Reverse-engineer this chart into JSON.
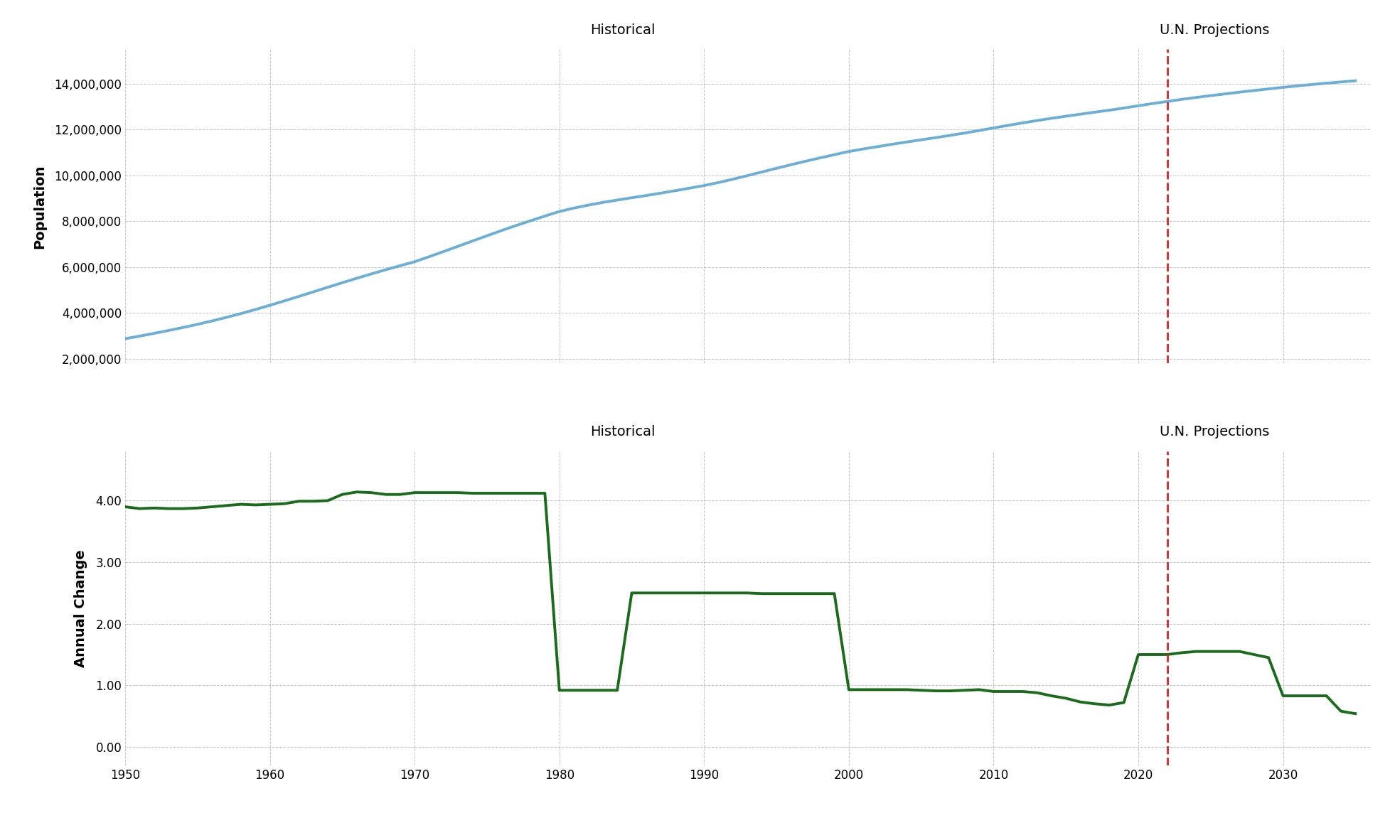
{
  "population_years": [
    1950,
    1951,
    1952,
    1953,
    1954,
    1955,
    1956,
    1957,
    1958,
    1959,
    1960,
    1961,
    1962,
    1963,
    1964,
    1965,
    1966,
    1967,
    1968,
    1969,
    1970,
    1971,
    1972,
    1973,
    1974,
    1975,
    1976,
    1977,
    1978,
    1979,
    1980,
    1981,
    1982,
    1983,
    1984,
    1985,
    1986,
    1987,
    1988,
    1989,
    1990,
    1991,
    1992,
    1993,
    1994,
    1995,
    1996,
    1997,
    1998,
    1999,
    2000,
    2001,
    2002,
    2003,
    2004,
    2005,
    2006,
    2007,
    2008,
    2009,
    2010,
    2011,
    2012,
    2013,
    2014,
    2015,
    2016,
    2017,
    2018,
    2019,
    2020,
    2021,
    2022,
    2023,
    2024,
    2025,
    2026,
    2027,
    2028,
    2029,
    2030,
    2031,
    2032,
    2033,
    2034,
    2035
  ],
  "population_values": [
    2877000,
    2992000,
    3112000,
    3237000,
    3368000,
    3506000,
    3653000,
    3809000,
    3975000,
    4152000,
    4336000,
    4527000,
    4723000,
    4922000,
    5122000,
    5320000,
    5514000,
    5703000,
    5886000,
    6063000,
    6236000,
    6454000,
    6680000,
    6910000,
    7141000,
    7370000,
    7595000,
    7814000,
    8023000,
    8228000,
    8426000,
    8577000,
    8706000,
    8823000,
    8928000,
    9027000,
    9125000,
    9228000,
    9336000,
    9447000,
    9559000,
    9692000,
    9839000,
    9994000,
    10153000,
    10312000,
    10467000,
    10618000,
    10764000,
    10906000,
    11045000,
    11157000,
    11258000,
    11362000,
    11459000,
    11554000,
    11649000,
    11748000,
    11851000,
    11960000,
    12074000,
    12184000,
    12292000,
    12395000,
    12492000,
    12585000,
    12673000,
    12761000,
    12847000,
    12941000,
    13040000,
    13137000,
    13227000,
    13321000,
    13403000,
    13482000,
    13559000,
    13634000,
    13706000,
    13776000,
    13843000,
    13908000,
    13968000,
    14025000,
    14079000,
    14130000
  ],
  "annual_years": [
    1950,
    1951,
    1952,
    1953,
    1954,
    1955,
    1956,
    1957,
    1958,
    1959,
    1960,
    1961,
    1962,
    1963,
    1964,
    1965,
    1966,
    1967,
    1968,
    1969,
    1970,
    1971,
    1972,
    1973,
    1974,
    1975,
    1976,
    1977,
    1978,
    1979,
    1980,
    1981,
    1982,
    1983,
    1984,
    1985,
    1986,
    1987,
    1988,
    1989,
    1990,
    1991,
    1992,
    1993,
    1994,
    1995,
    1996,
    1997,
    1998,
    1999,
    2000,
    2001,
    2002,
    2003,
    2004,
    2005,
    2006,
    2007,
    2008,
    2009,
    2010,
    2011,
    2012,
    2013,
    2014,
    2015,
    2016,
    2017,
    2018,
    2019,
    2020,
    2021,
    2022,
    2023,
    2024,
    2025,
    2026,
    2027,
    2028,
    2029,
    2030,
    2031,
    2032,
    2033,
    2034,
    2035
  ],
  "annual_values": [
    3.9,
    3.87,
    3.88,
    3.87,
    3.87,
    3.88,
    3.9,
    3.92,
    3.94,
    3.93,
    3.94,
    3.95,
    3.99,
    3.99,
    4.0,
    4.1,
    4.14,
    4.13,
    4.1,
    4.1,
    4.13,
    4.13,
    4.13,
    4.13,
    4.12,
    4.12,
    4.12,
    4.12,
    4.12,
    4.12,
    0.92,
    0.92,
    0.92,
    0.92,
    0.92,
    2.5,
    2.5,
    2.5,
    2.5,
    2.5,
    2.5,
    2.5,
    2.5,
    2.5,
    2.49,
    2.49,
    2.49,
    2.49,
    2.49,
    2.49,
    0.93,
    0.93,
    0.93,
    0.93,
    0.93,
    0.92,
    0.91,
    0.91,
    0.92,
    0.93,
    0.9,
    0.9,
    0.9,
    0.88,
    0.83,
    0.79,
    0.73,
    0.7,
    0.68,
    0.72,
    1.5,
    1.5,
    1.5,
    1.53,
    1.55,
    1.55,
    1.55,
    1.55,
    1.5,
    1.45,
    0.83,
    0.83,
    0.83,
    0.83,
    0.58,
    0.54
  ],
  "divider_year": 2022,
  "pop_line_color": "#6baed6",
  "annual_line_color": "#1a6b1a",
  "divider_color": "#cc2222",
  "background_color": "#ffffff",
  "grid_color": "#aaaaaa",
  "text_color": "#000000",
  "historical_label": "Historical",
  "projection_label": "U.N. Projections",
  "pop_ylabel": "Population",
  "annual_ylabel": "Annual Change",
  "pop_yticks": [
    2000000,
    4000000,
    6000000,
    8000000,
    10000000,
    12000000,
    14000000
  ],
  "annual_yticks": [
    0.0,
    1.0,
    2.0,
    3.0,
    4.0
  ],
  "xticks": [
    1950,
    1960,
    1970,
    1980,
    1990,
    2000,
    2010,
    2020,
    2030
  ],
  "pop_ylim": [
    1800000,
    15500000
  ],
  "annual_ylim": [
    -0.3,
    4.8
  ],
  "xlim": [
    1950,
    2036
  ]
}
